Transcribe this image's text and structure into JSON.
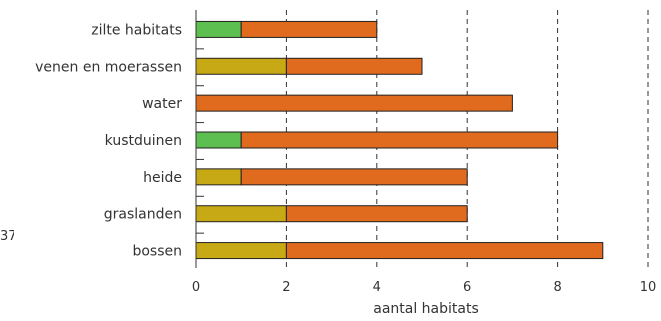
{
  "edge_text": "37",
  "chart_data": {
    "type": "bar",
    "orientation": "horizontal",
    "stacked": true,
    "categories": [
      "zilte habitats",
      "venen en moerassen",
      "water",
      "kustduinen",
      "heide",
      "graslanden",
      "bossen"
    ],
    "series": [
      {
        "values": [
          1,
          0,
          0,
          1,
          0,
          0,
          0
        ],
        "color": "#5cbf4f"
      },
      {
        "values": [
          0,
          2,
          0,
          0,
          1,
          2,
          2
        ],
        "color": "#c7a815"
      },
      {
        "values": [
          3,
          3,
          7,
          7,
          5,
          4,
          7
        ],
        "color": "#e06a1e"
      }
    ],
    "xlabel": "aantal habitats",
    "xlim": [
      0,
      10
    ],
    "xticks": [
      "0",
      "2",
      "4",
      "6",
      "8",
      "10"
    ],
    "grid": "vertical dashed"
  }
}
